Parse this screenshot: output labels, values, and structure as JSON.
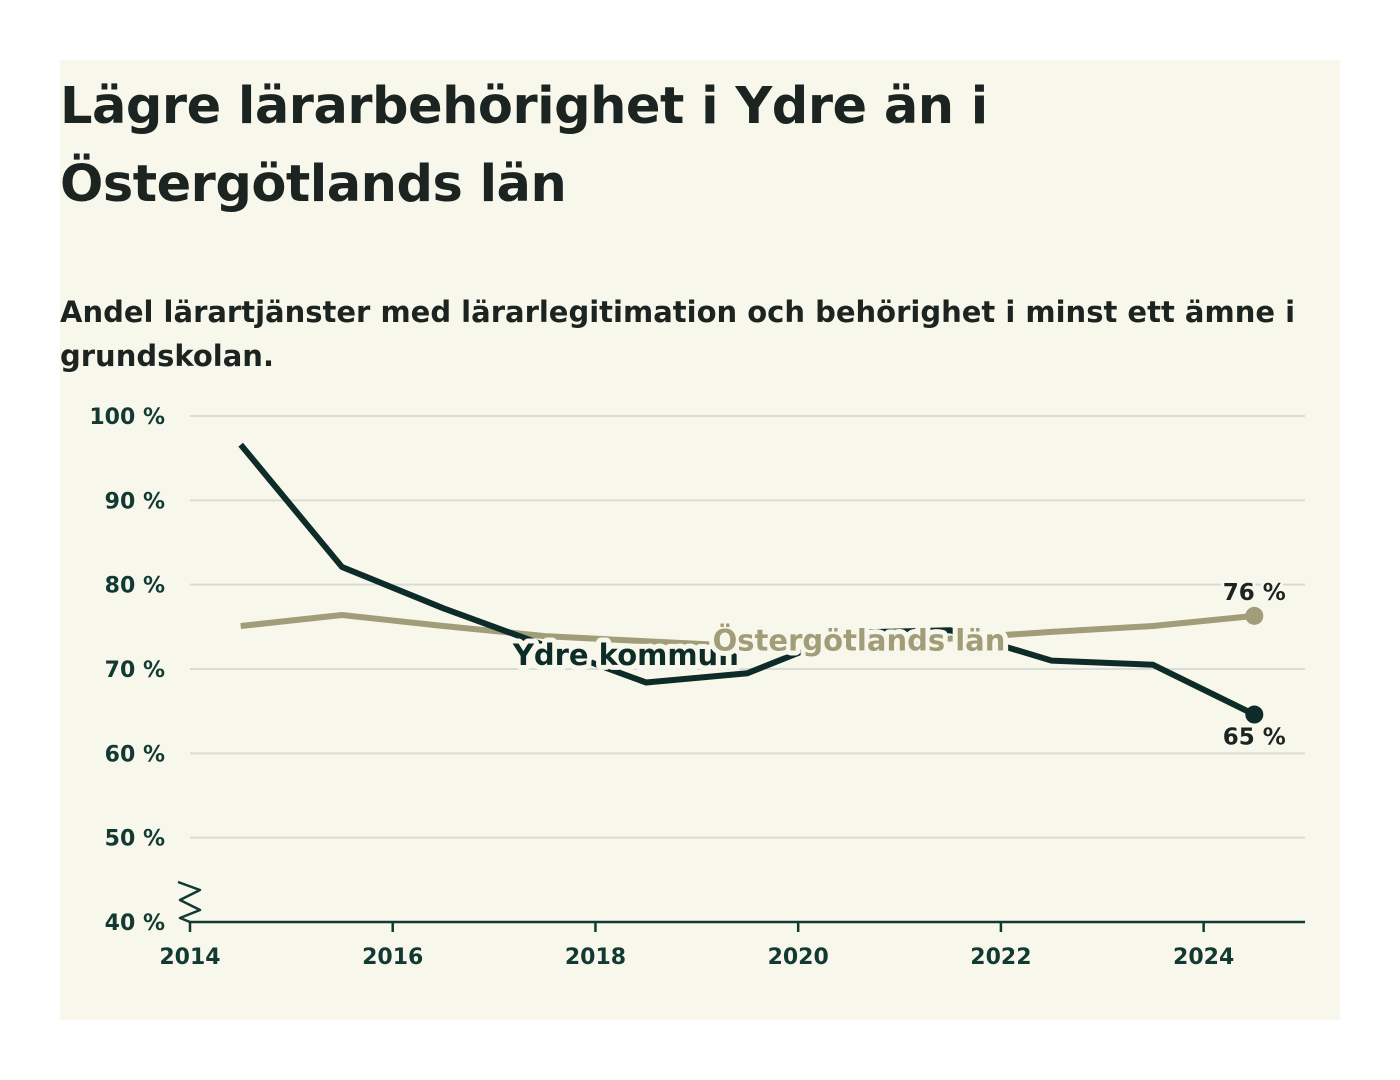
{
  "chart_data": {
    "type": "line",
    "title": "Lägre lärarbehörighet i Ydre än i Östergötlands län",
    "subtitle": "Andel lärartjänster med lärarlegitimation och behörighet i minst ett ämne i grundskolan.",
    "xlabel": "",
    "ylabel": "",
    "x": [
      2014.5,
      2015.5,
      2016.5,
      2017.5,
      2018.5,
      2019.5,
      2020.5,
      2021.5,
      2022.5,
      2023.5,
      2024.5
    ],
    "xlim": [
      2014,
      2025
    ],
    "ylim": [
      40,
      100
    ],
    "x_ticks": [
      2014,
      2016,
      2018,
      2020,
      2022,
      2024
    ],
    "x_tick_labels": [
      "2014",
      "2016",
      "2018",
      "2020",
      "2022",
      "2024"
    ],
    "y_ticks": [
      40,
      50,
      60,
      70,
      80,
      90,
      100
    ],
    "y_tick_labels": [
      "40 %",
      "50 %",
      "60 %",
      "70 %",
      "80 %",
      "90 %",
      "100 %"
    ],
    "axis_break": true,
    "grid": true,
    "series": [
      {
        "name": "Ydre kommun",
        "color": "#0d2b27",
        "values": [
          96.6,
          82.1,
          77.2,
          72.8,
          68.4,
          69.5,
          74.3,
          74.6,
          71.0,
          70.5,
          64.6
        ],
        "end_label": "65 %",
        "label_x": 2018.3,
        "label_y": 70.5
      },
      {
        "name": "Östergötlands län",
        "color": "#a19d78",
        "values": [
          75.1,
          76.4,
          75.1,
          73.9,
          73.3,
          72.7,
          73.0,
          73.6,
          74.4,
          75.1,
          76.3
        ],
        "end_label": "76 %",
        "label_x": 2020.6,
        "label_y": 72.2
      }
    ]
  }
}
